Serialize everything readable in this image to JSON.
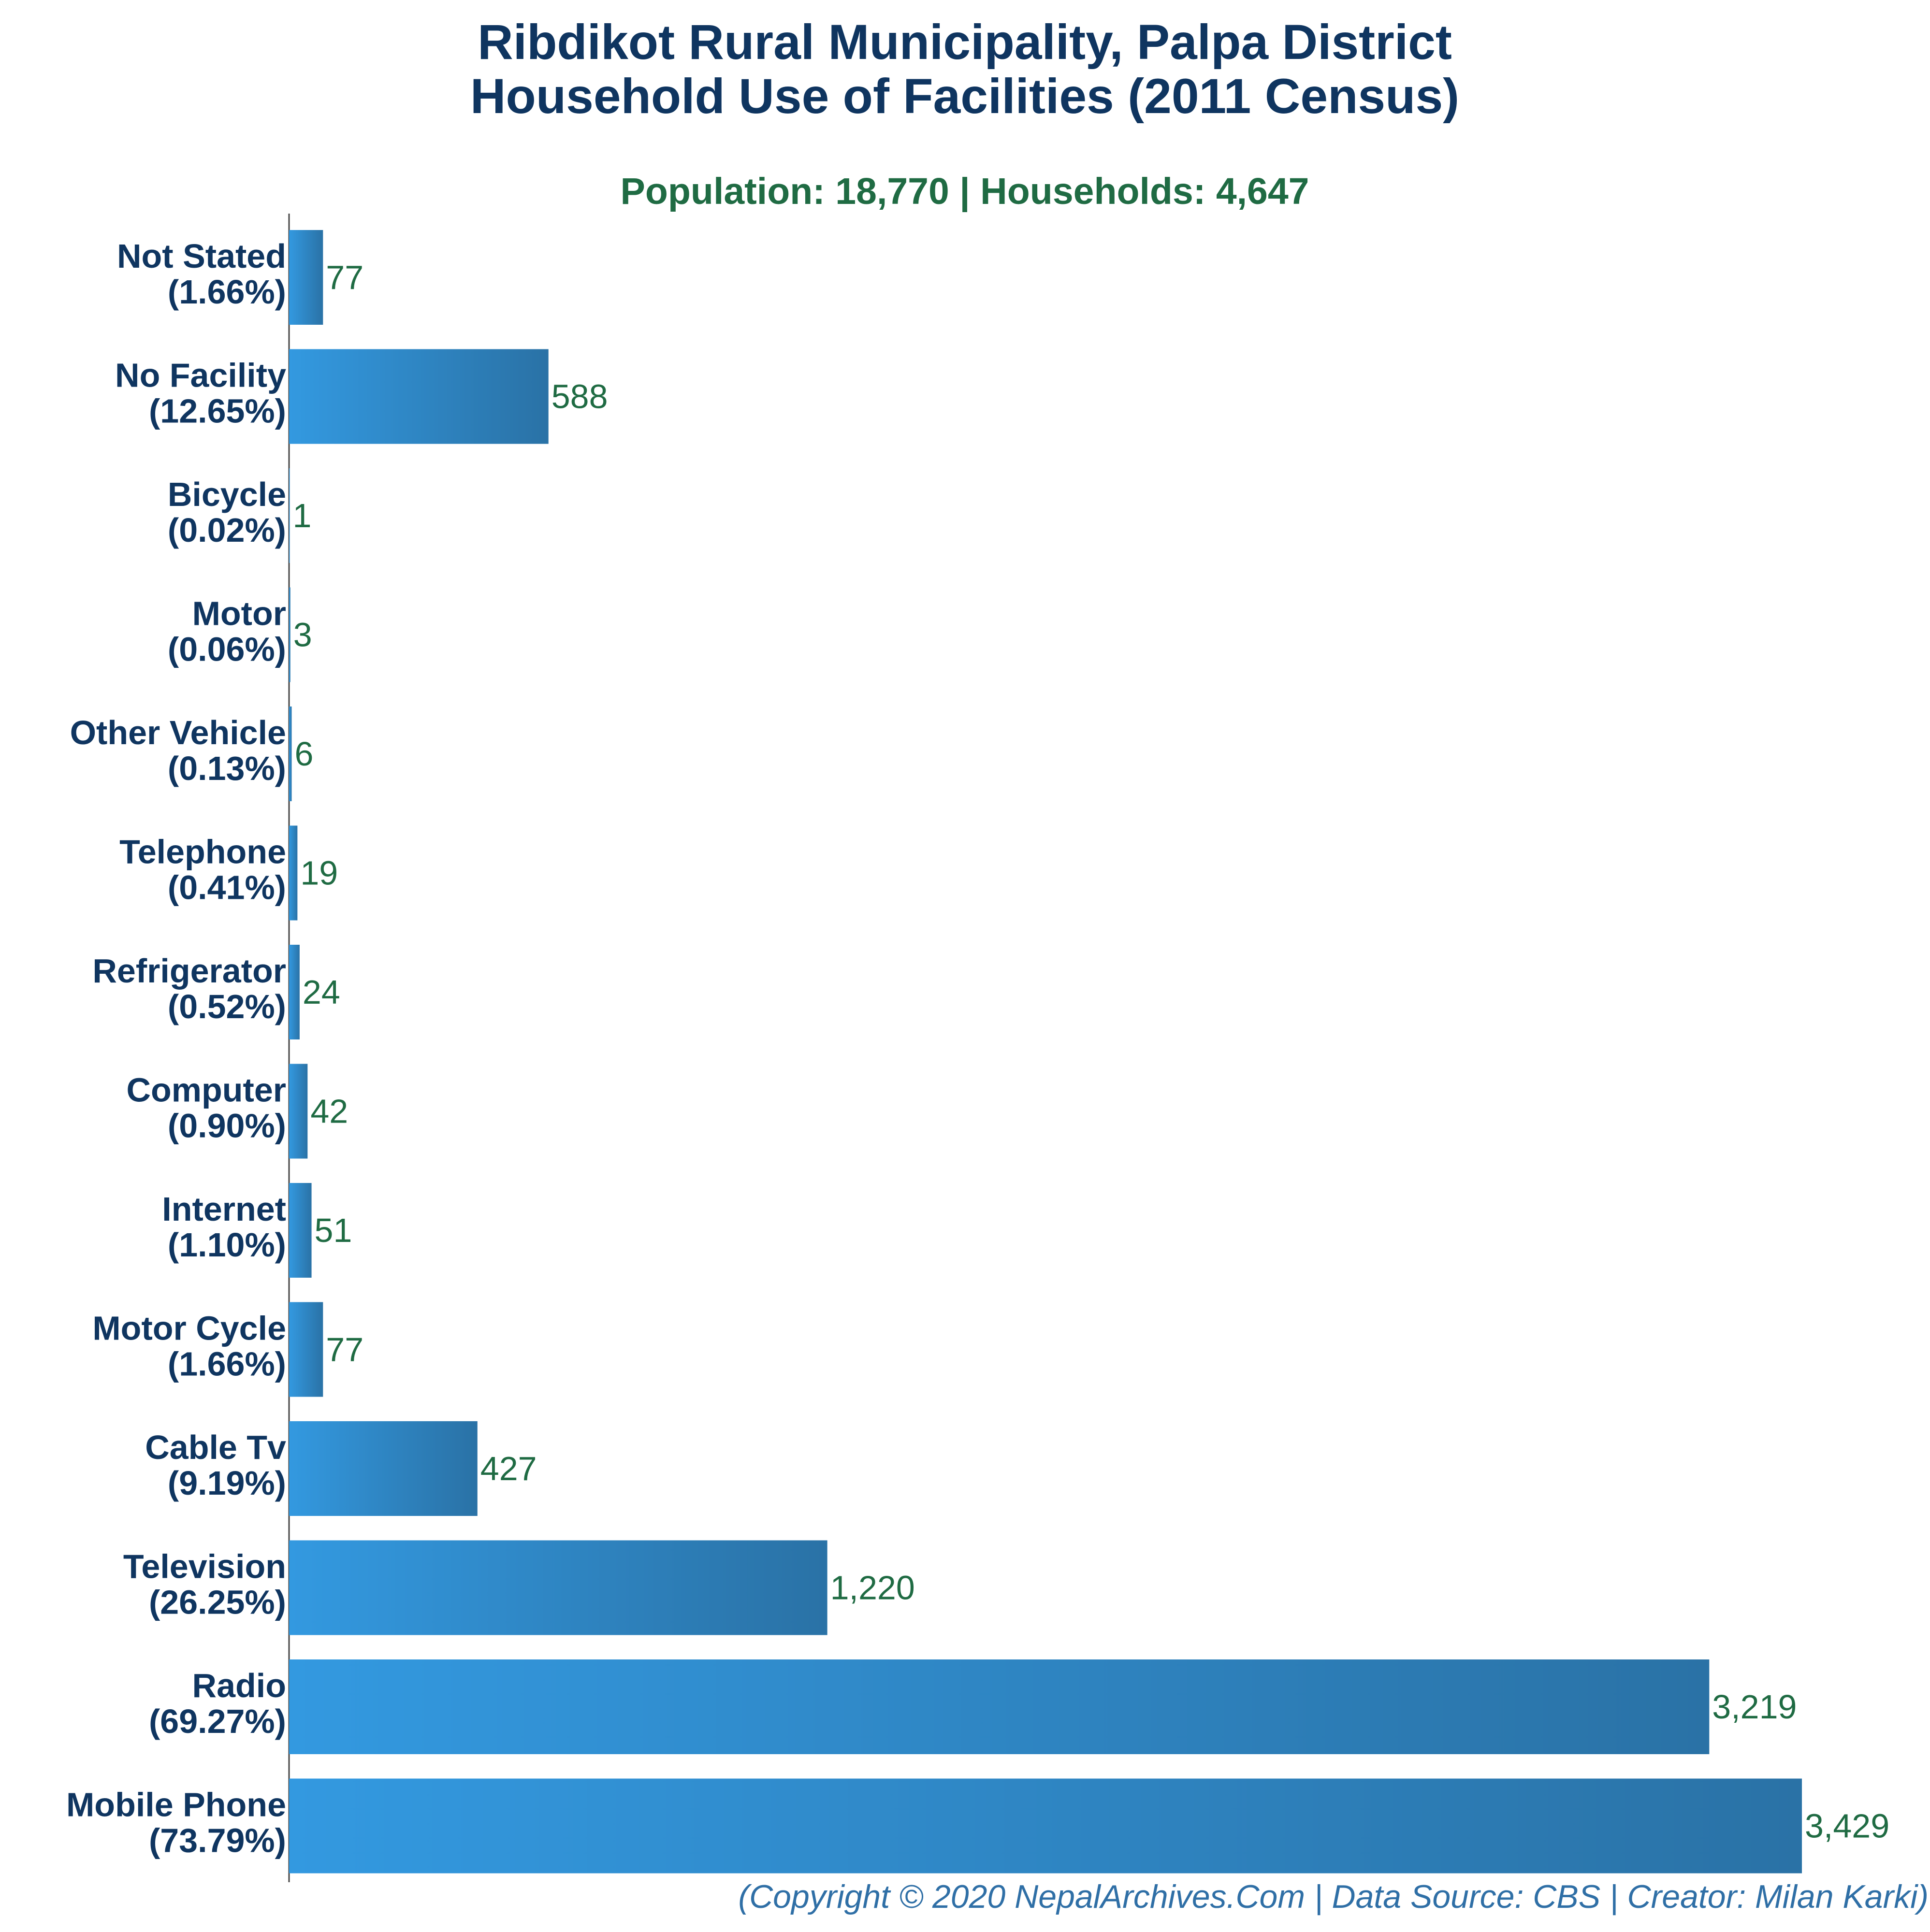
{
  "title_line1": "Ribdikot Rural Municipality, Palpa District",
  "title_line2": "Household Use of Facilities (2011 Census)",
  "subtitle": "Population: 18,770 | Households: 4,647",
  "footer": "(Copyright © 2020 NepalArchives.Com | Data Source: CBS | Creator: Milan Karki)",
  "colors": {
    "bar_start": "#3399e0",
    "bar_end": "#2a72a6",
    "axis": "#444444"
  },
  "chart_data": {
    "type": "bar",
    "orientation": "horizontal",
    "categories": [
      "Not Stated",
      "No Facility",
      "Bicycle",
      "Motor",
      "Other Vehicle",
      "Telephone",
      "Refrigerator",
      "Computer",
      "Internet",
      "Motor Cycle",
      "Cable Tv",
      "Television",
      "Radio",
      "Mobile Phone"
    ],
    "percent_labels": [
      "(1.66%)",
      "(12.65%)",
      "(0.02%)",
      "(0.06%)",
      "(0.13%)",
      "(0.41%)",
      "(0.52%)",
      "(0.90%)",
      "(1.10%)",
      "(1.66%)",
      "(9.19%)",
      "(26.25%)",
      "(69.27%)",
      "(73.79%)"
    ],
    "values": [
      77,
      588,
      1,
      3,
      6,
      19,
      24,
      42,
      51,
      77,
      427,
      1220,
      3219,
      3429
    ],
    "value_labels": [
      "77",
      "588",
      "1",
      "3",
      "6",
      "19",
      "24",
      "42",
      "51",
      "77",
      "427",
      "1,220",
      "3,219",
      "3,429"
    ],
    "xlim": [
      0,
      3429
    ],
    "grid": false,
    "legend": "none"
  }
}
